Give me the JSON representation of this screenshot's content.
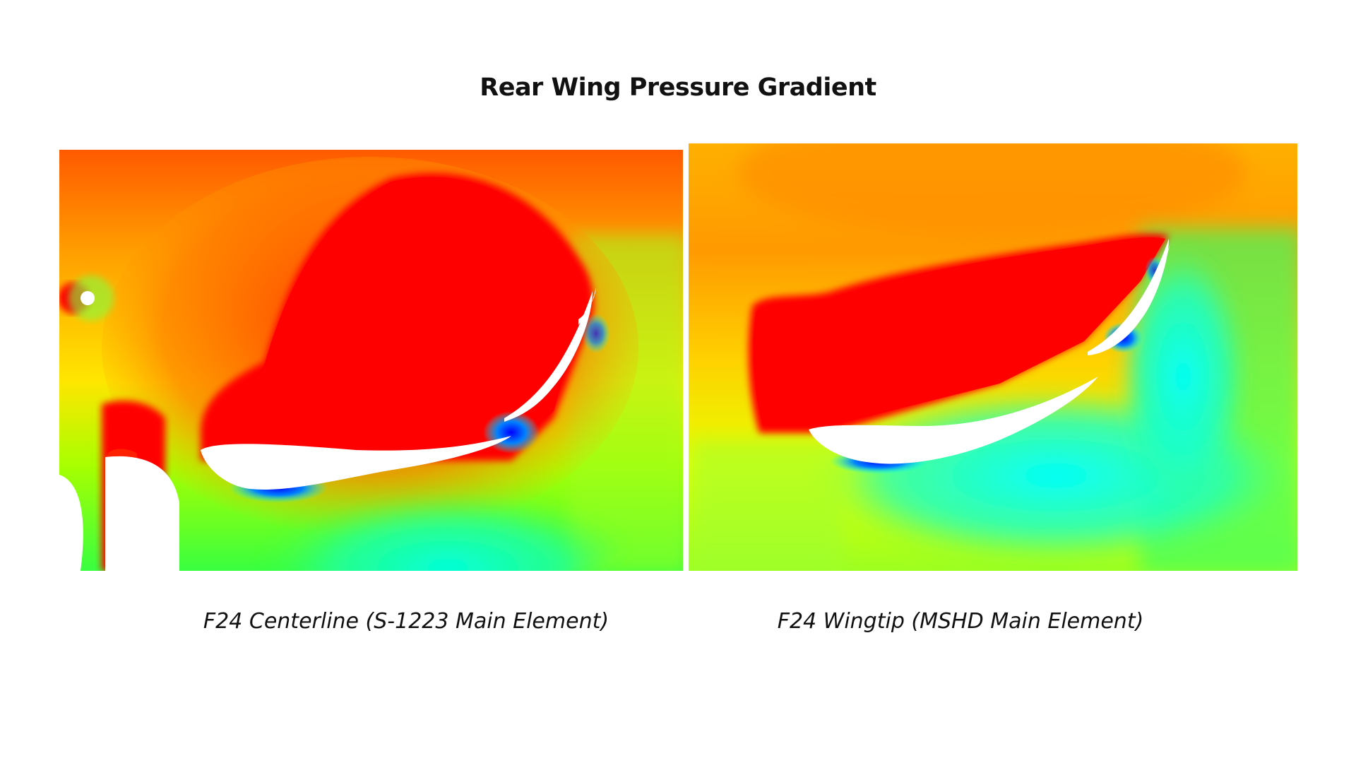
{
  "title": "Rear Wing Pressure Gradient",
  "panels": [
    {
      "caption": "F24 Centerline (S-1223 Main Element)",
      "image": "pressure-contour-centerline"
    },
    {
      "caption": "F24 Wingtip (MSHD Main Element)",
      "image": "pressure-contour-wingtip"
    }
  ],
  "colors": {
    "high_pressure": "#ff0000",
    "mid_high": "#ffa500",
    "mid": "#ffff00",
    "mid_low": "#00ff00",
    "low": "#00ffff",
    "lowest": "#0000ff",
    "airfoil_surface": "#ffffff"
  }
}
